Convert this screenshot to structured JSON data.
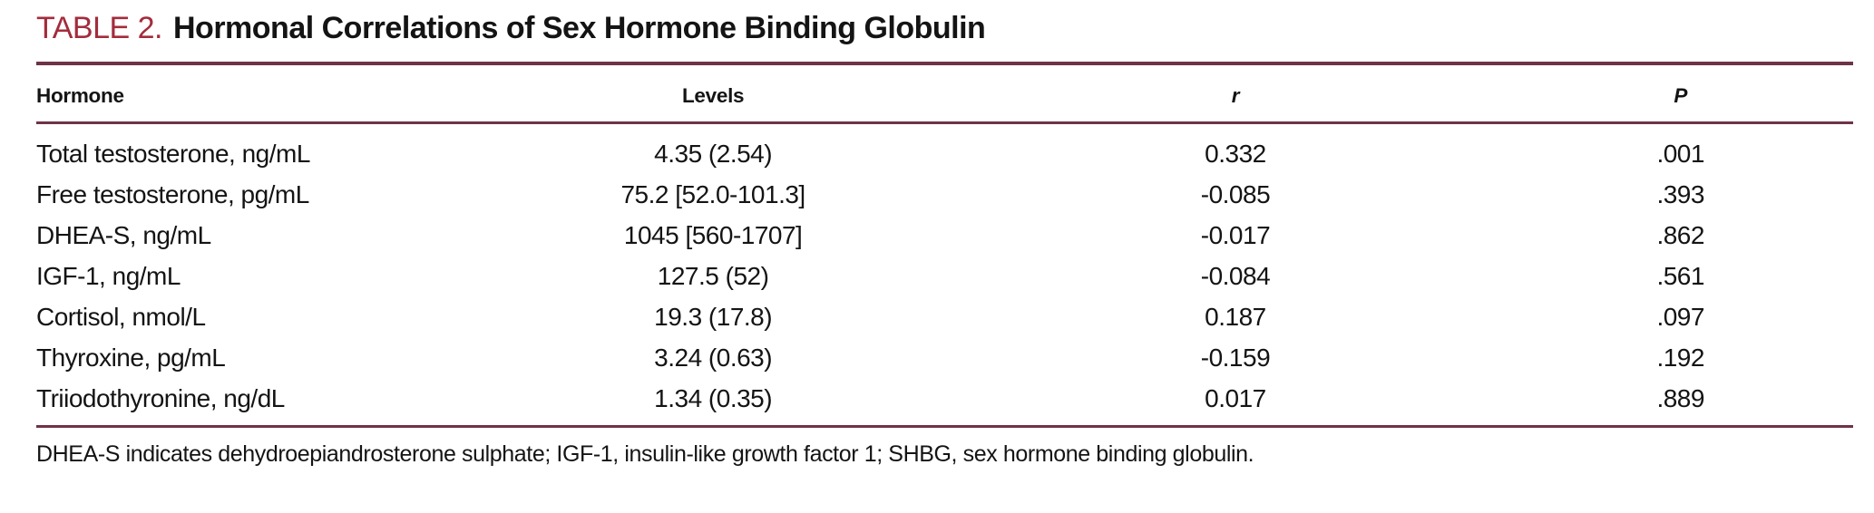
{
  "title": {
    "label": "TABLE 2.",
    "text": "Hormonal Correlations of Sex Hormone Binding Globulin"
  },
  "colors": {
    "title_accent": "#a32c3c",
    "rule": "#6e3346",
    "text": "#141414",
    "background": "#ffffff"
  },
  "table": {
    "headers": [
      "Hormone",
      "Levels",
      "r",
      "P"
    ],
    "rows": [
      {
        "hormone": "Total testosterone, ng/mL",
        "levels": "4.35 (2.54)",
        "r": "0.332",
        "p": ".001"
      },
      {
        "hormone": "Free testosterone, pg/mL",
        "levels": "75.2 [52.0-101.3]",
        "r": "-0.085",
        "p": ".393"
      },
      {
        "hormone": "DHEA-S, ng/mL",
        "levels": "1045 [560-1707]",
        "r": "-0.017",
        "p": ".862"
      },
      {
        "hormone": "IGF-1, ng/mL",
        "levels": "127.5 (52)",
        "r": "-0.084",
        "p": ".561"
      },
      {
        "hormone": "Cortisol, nmol/L",
        "levels": "19.3 (17.8)",
        "r": "0.187",
        "p": ".097"
      },
      {
        "hormone": "Thyroxine, pg/mL",
        "levels": "3.24 (0.63)",
        "r": "-0.159",
        "p": ".192"
      },
      {
        "hormone": "Triiodothyronine, ng/dL",
        "levels": "1.34 (0.35)",
        "r": "0.017",
        "p": ".889"
      }
    ]
  },
  "footnote": "DHEA-S indicates dehydroepiandrosterone sulphate; IGF-1, insulin-like growth factor 1; SHBG, sex hormone binding globulin."
}
